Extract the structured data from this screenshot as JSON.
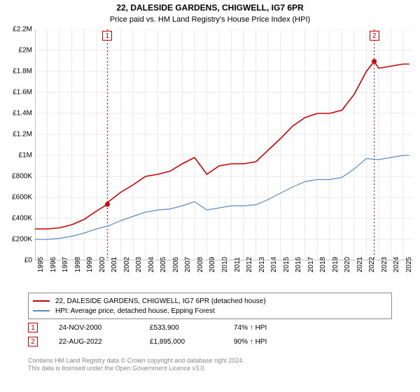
{
  "title_line1": "22, DALESIDE GARDENS, CHIGWELL, IG7 6PR",
  "title_line2": "Price paid vs. HM Land Registry's House Price Index (HPI)",
  "chart": {
    "type": "line",
    "background_color": "#ffffff",
    "grid_color": "#e8e8e8",
    "axis_color": "#888888",
    "xlim": [
      1995,
      2025.8
    ],
    "ylim": [
      0,
      2200000
    ],
    "ytick_step": 200000,
    "yticks": [
      "£0",
      "£200K",
      "£400K",
      "£600K",
      "£800K",
      "£1M",
      "£1.2M",
      "£1.4M",
      "£1.6M",
      "£1.8M",
      "£2M",
      "£2.2M"
    ],
    "xticks": [
      "1995",
      "1996",
      "1997",
      "1998",
      "1999",
      "2000",
      "2001",
      "2002",
      "2003",
      "2004",
      "2005",
      "2006",
      "2007",
      "2008",
      "2009",
      "2010",
      "2011",
      "2012",
      "2013",
      "2014",
      "2015",
      "2016",
      "2017",
      "2018",
      "2019",
      "2020",
      "2021",
      "2022",
      "2023",
      "2024",
      "2025"
    ],
    "series": [
      {
        "name": "22, DALESIDE GARDENS, CHIGWELL, IG7 6PR (detached house)",
        "color": "#cc0000",
        "line_width": 1.6,
        "x": [
          1995,
          1996,
          1997,
          1998,
          1999,
          2000,
          2000.9,
          2001,
          2002,
          2003,
          2004,
          2005,
          2006,
          2007,
          2008,
          2009,
          2010,
          2011,
          2012,
          2013,
          2014,
          2015,
          2016,
          2017,
          2018,
          2019,
          2020,
          2021,
          2022,
          2022.64,
          2023,
          2024,
          2025,
          2025.5
        ],
        "y": [
          300000,
          300000,
          310000,
          340000,
          390000,
          470000,
          533900,
          560000,
          650000,
          720000,
          800000,
          820000,
          850000,
          920000,
          980000,
          820000,
          900000,
          920000,
          920000,
          940000,
          1050000,
          1160000,
          1280000,
          1360000,
          1400000,
          1400000,
          1430000,
          1580000,
          1800000,
          1895000,
          1830000,
          1850000,
          1870000,
          1870000
        ]
      },
      {
        "name": "HPI: Average price, detached house, Epping Forest",
        "color": "#5b8ac6",
        "line_width": 1.2,
        "x": [
          1995,
          1996,
          1997,
          1998,
          1999,
          2000,
          2001,
          2002,
          2003,
          2004,
          2005,
          2006,
          2007,
          2008,
          2009,
          2010,
          2011,
          2012,
          2013,
          2014,
          2015,
          2016,
          2017,
          2018,
          2019,
          2020,
          2021,
          2022,
          2023,
          2024,
          2025,
          2025.5
        ],
        "y": [
          200000,
          200000,
          210000,
          230000,
          260000,
          300000,
          330000,
          380000,
          420000,
          460000,
          480000,
          490000,
          520000,
          560000,
          480000,
          500000,
          520000,
          520000,
          530000,
          580000,
          640000,
          700000,
          750000,
          770000,
          770000,
          790000,
          870000,
          970000,
          960000,
          980000,
          1000000,
          1000000
        ]
      }
    ],
    "sale_markers": [
      {
        "n": "1",
        "date": "24-NOV-2000",
        "x": 2000.9,
        "y": 533900,
        "price": "£533,900",
        "pct": "74% ↑ HPI",
        "vline_color": "#cc0000",
        "vline_dash": "2,3"
      },
      {
        "n": "2",
        "date": "22-AUG-2022",
        "x": 2022.64,
        "y": 1895000,
        "price": "£1,895,000",
        "pct": "90% ↑ HPI",
        "vline_color": "#cc0000",
        "vline_dash": "2,3"
      }
    ],
    "dot_color": "#cc0000",
    "dot_radius": 3.5
  },
  "legend": {
    "border_color": "#888888"
  },
  "footer_line1": "Contains HM Land Registry data © Crown copyright and database right 2024.",
  "footer_line2": "This data is licensed under the Open Government Licence v3.0.",
  "label_fontsize": 10,
  "title_fontsize": 12
}
